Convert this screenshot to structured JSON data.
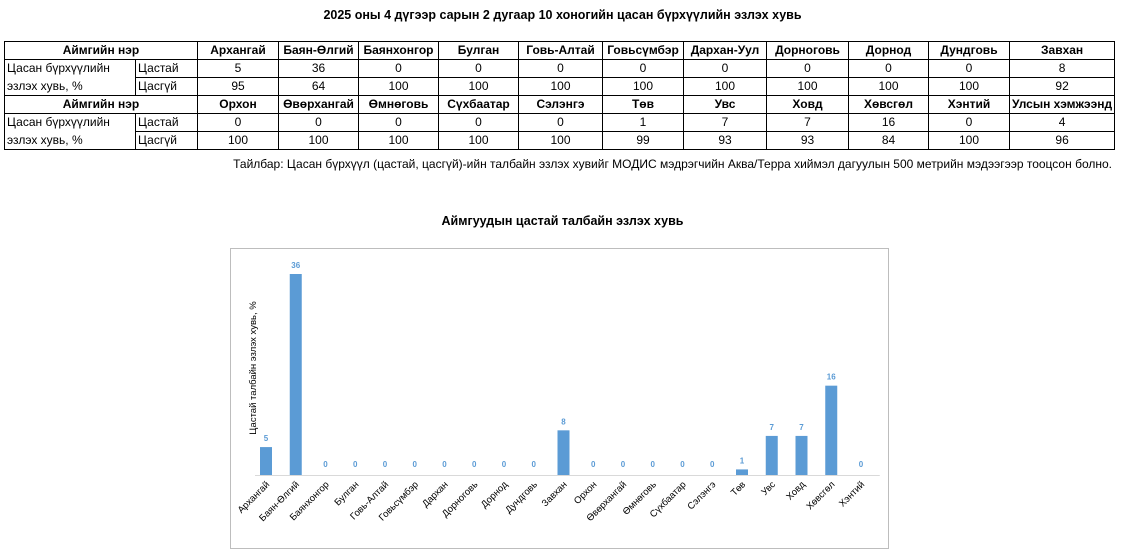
{
  "page_title": "2025 оны 4 дүгээр сарын 2 дугаар 10 хоногийн цасан бүрхүүлийн эзлэх хувь",
  "table": {
    "header_label": "Аймгийн нэр",
    "row_label_line1": "Цасан бүрхүүлийн",
    "row_label_line2": "эзлэх хувь, %",
    "sub_labels": [
      "Цастай",
      "Цасгүй"
    ],
    "block1": {
      "names": [
        "Архангай",
        "Баян-Өлгий",
        "Баянхонгор",
        "Булган",
        "Говь-Алтай",
        "Говьсүмбэр",
        "Дархан-Уул",
        "Дорноговь",
        "Дорнод",
        "Дундговь",
        "Завхан"
      ],
      "snow": [
        "5",
        "36",
        "0",
        "0",
        "0",
        "0",
        "0",
        "0",
        "0",
        "0",
        "8"
      ],
      "nosnow": [
        "95",
        "64",
        "100",
        "100",
        "100",
        "100",
        "100",
        "100",
        "100",
        "100",
        "92"
      ]
    },
    "block2": {
      "names": [
        "Орхон",
        "Өвөрхангай",
        "Өмнөговь",
        "Сүхбаатар",
        "Сэлэнгэ",
        "Төв",
        "Увс",
        "Ховд",
        "Хөвсгөл",
        "Хэнтий",
        "Улсын хэмжээнд"
      ],
      "snow": [
        "0",
        "0",
        "0",
        "0",
        "0",
        "1",
        "7",
        "7",
        "16",
        "0",
        "4"
      ],
      "nosnow": [
        "100",
        "100",
        "100",
        "100",
        "100",
        "99",
        "93",
        "93",
        "84",
        "100",
        "96"
      ]
    }
  },
  "note": "Тайлбар: Цасан бүрхүүл (цастай, цасгүй)-ийн талбайн эзлэх хувийг МОДИС мэдрэгчийн Аква/Терра хиймэл дагуулын 500 метрийн мэдээгээр тооцсон болно.",
  "chart_data": {
    "type": "bar",
    "title": "Аймгуудын цастай талбайн эзлэх хувь",
    "ylabel": "Цастай талбайн эзлэх хувь, %",
    "xlabel": "",
    "categories": [
      "Архангай",
      "Баян-Өлгий",
      "Баянхонгор",
      "Булган",
      "Говь-Алтай",
      "Говьсүмбэр",
      "Дархан",
      "Дорноговь",
      "Дорнод",
      "Дундговь",
      "Завхан",
      "Орхон",
      "Өвөрхангай",
      "Өмнөговь",
      "Сүхбаатар",
      "Сэлэнгэ",
      "Төв",
      "Увс",
      "Ховд",
      "Хөвсгөл",
      "Хэнтий"
    ],
    "values": [
      5,
      36,
      0,
      0,
      0,
      0,
      0,
      0,
      0,
      0,
      8,
      0,
      0,
      0,
      0,
      0,
      1,
      7,
      7,
      16,
      0
    ],
    "ylim": [
      0,
      40
    ],
    "bar_color": "#5b9bd5",
    "label_color": "#5b9bd5",
    "grid": false,
    "legend": "none"
  }
}
